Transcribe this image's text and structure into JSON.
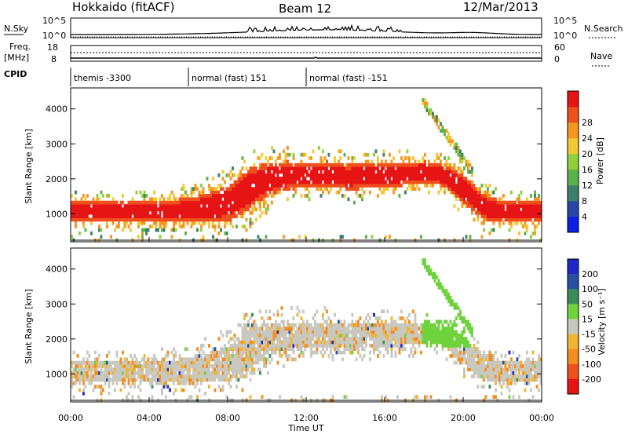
{
  "header": {
    "station": "Hokkaido (fitACF)",
    "beam": "Beam 12",
    "date": "12/Mar/2013"
  },
  "strips": {
    "nsky_label": "N.Sky",
    "nsearch_label": "N.Search",
    "freq_label_1": "Freq.",
    "freq_label_2": "[MHz]",
    "nave_label": "Nave",
    "cpid_label": "CPID",
    "left_ticks_noise": [
      "10^5",
      "10^0"
    ],
    "right_ticks_noise": [
      "10^5",
      "10^0"
    ],
    "left_ticks_freq": [
      "18",
      "8"
    ],
    "right_ticks_nave": [
      "60",
      "0"
    ],
    "cpid_segments": [
      {
        "text": "themis -3300",
        "start_h": 0,
        "end_h": 6
      },
      {
        "text": "normal (fast) 151",
        "start_h": 6,
        "end_h": 12
      },
      {
        "text": "normal (fast) -151",
        "start_h": 12,
        "end_h": 24
      }
    ]
  },
  "chart_data": [
    {
      "type": "heatmap",
      "title": "Power",
      "xlabel": "",
      "ylabel": "Slant Range [km]",
      "xlim_hours": [
        0,
        24
      ],
      "ylim_km": [
        200,
        4600
      ],
      "y_ticks": [
        1000,
        2000,
        3000,
        4000
      ],
      "colorbar": {
        "label": "Power [dB]",
        "ticks": [
          "4",
          "8",
          "12",
          "16",
          "20",
          "24",
          "28"
        ],
        "colors": [
          "#0a1ee6",
          "#2846a8",
          "#3c7f6a",
          "#5ab24a",
          "#8fd13c",
          "#f0c832",
          "#f5961e",
          "#f0501e",
          "#e61414"
        ]
      },
      "bands": [
        {
          "t": [
            0,
            4,
            6,
            8,
            9,
            10,
            11,
            12,
            13,
            14,
            16,
            18,
            19,
            20,
            21,
            22,
            24
          ],
          "center_km": [
            1050,
            1050,
            1100,
            1300,
            1700,
            2000,
            2100,
            2100,
            2150,
            2050,
            2100,
            2200,
            2100,
            1700,
            1200,
            1050,
            1050
          ],
          "width_km": [
            300,
            300,
            350,
            500,
            600,
            450,
            400,
            350,
            350,
            350,
            350,
            300,
            300,
            400,
            350,
            300,
            300
          ]
        }
      ]
    },
    {
      "type": "heatmap",
      "title": "Velocity",
      "xlabel": "Time UT",
      "ylabel": "Slant Range [km]",
      "xlim_hours": [
        0,
        24
      ],
      "ylim_km": [
        200,
        4600
      ],
      "y_ticks": [
        1000,
        2000,
        3000,
        4000
      ],
      "x_ticks": [
        "00:00",
        "04:00",
        "08:00",
        "12:00",
        "16:00",
        "20:00",
        "00:00"
      ],
      "colorbar": {
        "label": "Velocity [m s⁻¹]",
        "ticks": [
          "200",
          "100",
          "50",
          "15",
          "-15",
          "-50",
          "-100",
          "-200"
        ],
        "colors": [
          "#1e28c8",
          "#2850a0",
          "#3c8c5a",
          "#6ed23c",
          "#c8c8c0",
          "#f0b432",
          "#f58c1e",
          "#f0501e",
          "#e61414"
        ]
      }
    }
  ]
}
